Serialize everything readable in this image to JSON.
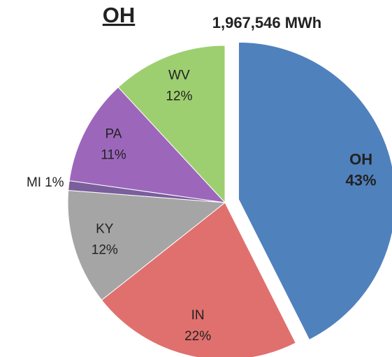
{
  "chart_data": {
    "type": "pie",
    "title": "OH",
    "subtitle": "1,967,546 MWh",
    "categories": [
      "OH",
      "IN",
      "KY",
      "MI",
      "PA",
      "WV"
    ],
    "values": [
      43,
      22,
      12,
      1,
      11,
      12
    ],
    "value_labels": [
      "43%",
      "22%",
      "12%",
      "1%",
      "11%",
      "12%"
    ],
    "colors": [
      "#4f81bd",
      "#e0706e",
      "#a5a5a5",
      "#7b5e9c",
      "#9c67bb",
      "#9dcf70"
    ]
  }
}
